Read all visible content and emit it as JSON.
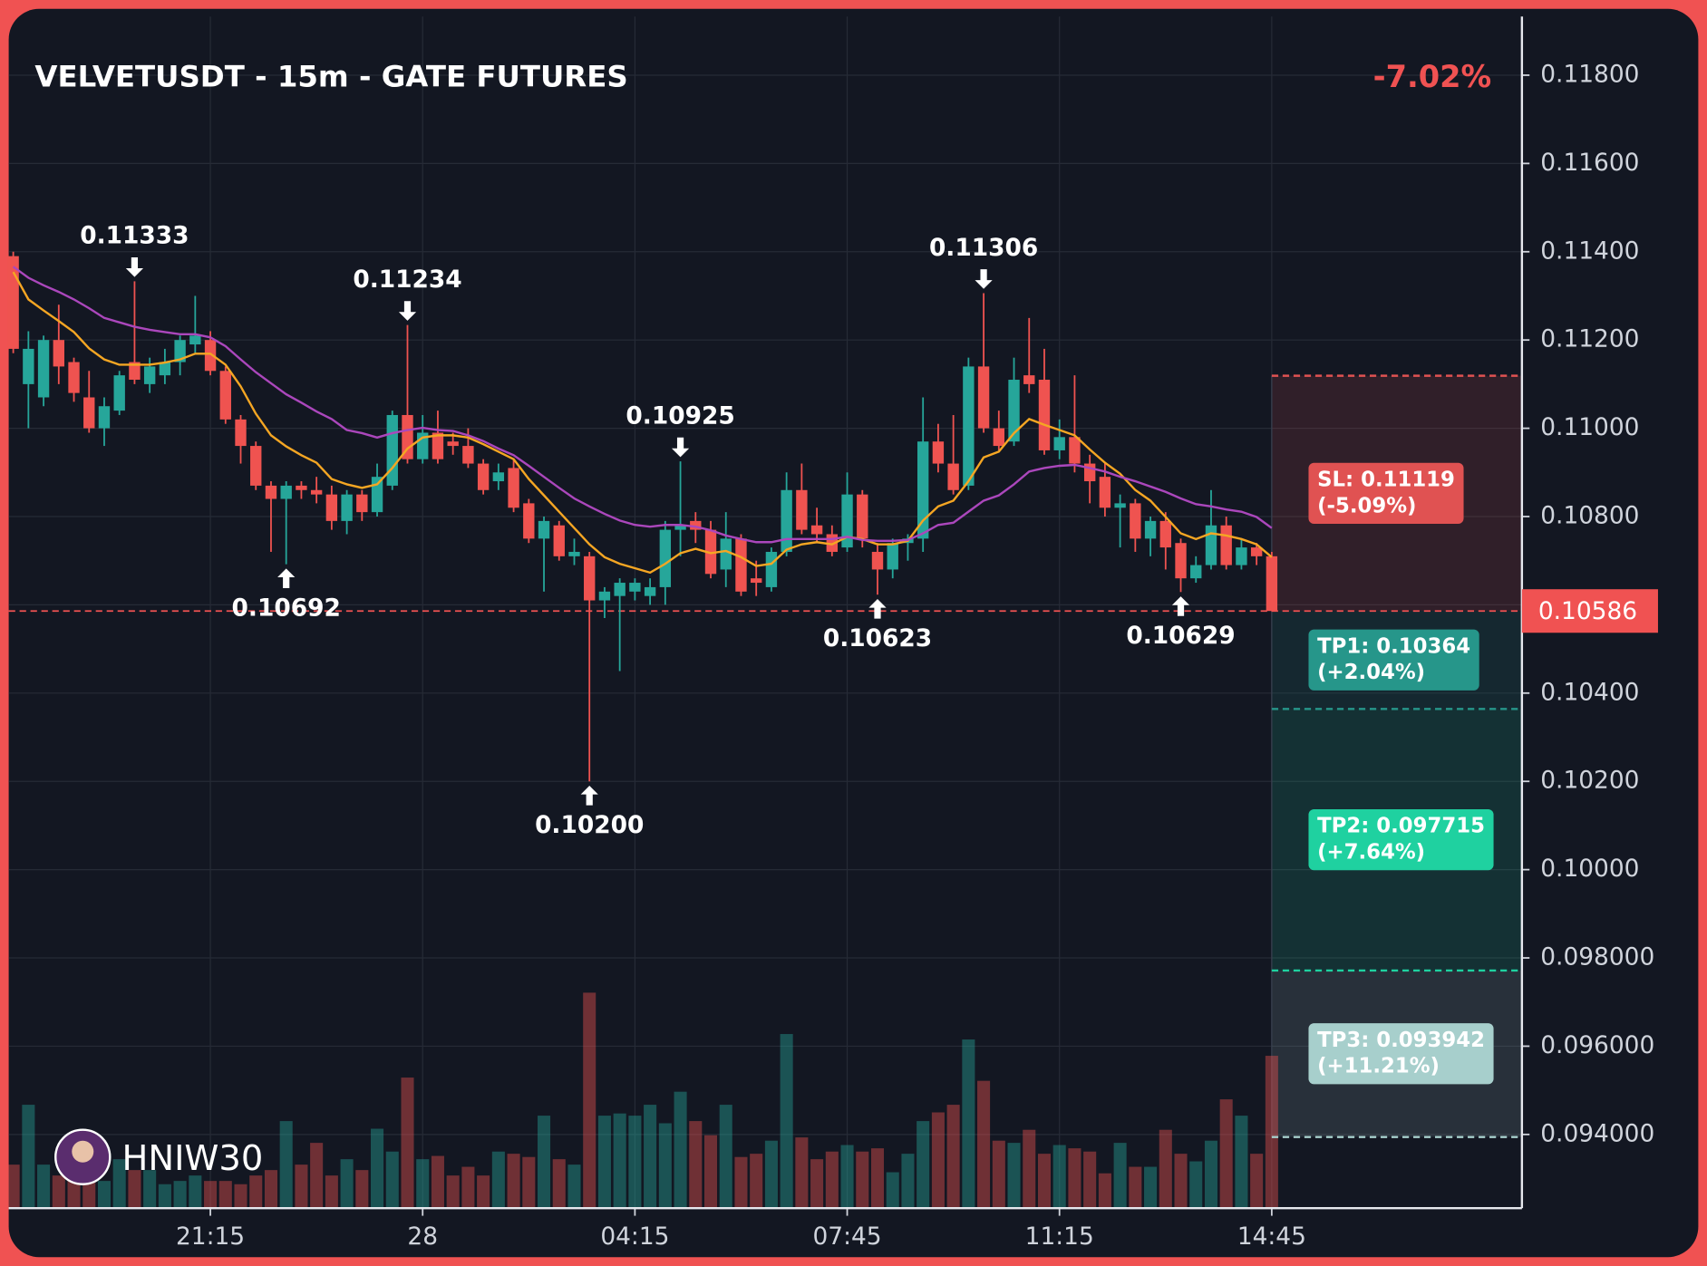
{
  "chart_data": {
    "type": "candlestick",
    "title": "VELVETUSDT - 15m - GATE FUTURES",
    "change": "-7.02%",
    "watermark": "HNIW30",
    "xlim": [
      -0.3,
      99.5
    ],
    "xticks": [
      {
        "value": 13,
        "label": "21:15"
      },
      {
        "value": 27,
        "label": "28"
      },
      {
        "value": 41,
        "label": "04:15"
      },
      {
        "value": 55,
        "label": "07:45"
      },
      {
        "value": 69,
        "label": "11:15"
      },
      {
        "value": 83,
        "label": "14:45"
      }
    ],
    "ylim": [
      0.09233,
      0.11933
    ],
    "yticks": [
      {
        "value": 0.118,
        "label": "0.11800"
      },
      {
        "value": 0.116,
        "label": "0.11600"
      },
      {
        "value": 0.114,
        "label": "0.11400"
      },
      {
        "value": 0.112,
        "label": "0.11200"
      },
      {
        "value": 0.11,
        "label": "0.11000"
      },
      {
        "value": 0.108,
        "label": "0.10800"
      },
      {
        "value": 0.106,
        "label": "0.10600"
      },
      {
        "value": 0.104,
        "label": "0.10400"
      },
      {
        "value": 0.102,
        "label": "0.10200"
      },
      {
        "value": 0.1,
        "label": "0.10000"
      },
      {
        "value": 0.098,
        "label": "0.098000"
      },
      {
        "value": 0.096,
        "label": "0.096000"
      },
      {
        "value": 0.094,
        "label": "0.094000"
      }
    ],
    "grid": true,
    "up_color": "#26a69a",
    "down_color": "#ef5350",
    "open": [
      0.1139,
      0.111,
      0.1107,
      0.112,
      0.1115,
      0.1107,
      0.11,
      0.1104,
      0.1115,
      0.111,
      0.1112,
      0.1115,
      0.1119,
      0.112,
      0.1113,
      0.1102,
      0.1096,
      0.1087,
      0.1084,
      0.1087,
      0.1086,
      0.1085,
      0.1079,
      0.1085,
      0.1081,
      0.1087,
      0.1103,
      0.1093,
      0.1099,
      0.1097,
      0.1096,
      0.1092,
      0.1088,
      0.1091,
      0.1083,
      0.1075,
      0.1078,
      0.1071,
      0.1071,
      0.1061,
      0.1062,
      0.1063,
      0.1062,
      0.1064,
      0.1077,
      0.1079,
      0.1077,
      0.1068,
      0.1075,
      0.1066,
      0.1064,
      0.1072,
      0.1086,
      0.1078,
      0.1076,
      0.1073,
      0.1085,
      0.1072,
      0.1068,
      0.1074,
      0.1075,
      0.1097,
      0.1092,
      0.1087,
      0.1114,
      0.11,
      0.1097,
      0.1112,
      0.1111,
      0.1095,
      0.1098,
      0.1092,
      0.1089,
      0.1082,
      0.1083,
      0.1075,
      0.1079,
      0.1074,
      0.1066,
      0.1069,
      0.1078,
      0.1069,
      0.1073,
      0.1071
    ],
    "high": [
      0.114,
      0.1122,
      0.1121,
      0.1128,
      0.1116,
      0.1113,
      0.1107,
      0.1113,
      0.11333,
      0.1116,
      0.1118,
      0.1121,
      0.113,
      0.1122,
      0.1114,
      0.1103,
      0.1097,
      0.1088,
      0.1088,
      0.1088,
      0.1089,
      0.1087,
      0.1086,
      0.1086,
      0.1092,
      0.1104,
      0.11234,
      0.1103,
      0.1104,
      0.1099,
      0.11,
      0.1093,
      0.1092,
      0.1093,
      0.1084,
      0.108,
      0.1079,
      0.1075,
      0.1072,
      0.1064,
      0.1066,
      0.1066,
      0.1066,
      0.1079,
      0.10925,
      0.1081,
      0.1079,
      0.1081,
      0.1076,
      0.107,
      0.1073,
      0.109,
      0.1092,
      0.1082,
      0.1078,
      0.109,
      0.1086,
      0.1074,
      0.1075,
      0.1076,
      0.1107,
      0.1101,
      0.1103,
      0.1116,
      0.11306,
      0.1104,
      0.1116,
      0.1125,
      0.1118,
      0.1102,
      0.1112,
      0.1094,
      0.1092,
      0.1085,
      0.1084,
      0.108,
      0.1081,
      0.1075,
      0.1071,
      0.1086,
      0.108,
      0.1075,
      0.1074,
      0.1072
    ],
    "low": [
      0.1117,
      0.11,
      0.1105,
      0.111,
      0.1106,
      0.1099,
      0.1096,
      0.1103,
      0.111,
      0.1108,
      0.111,
      0.1112,
      0.1117,
      0.1112,
      0.1101,
      0.1092,
      0.1086,
      0.1072,
      0.10692,
      0.1084,
      0.1083,
      0.1077,
      0.1076,
      0.1079,
      0.108,
      0.1086,
      0.1092,
      0.1092,
      0.1092,
      0.1094,
      0.1091,
      0.1085,
      0.1086,
      0.1081,
      0.1074,
      0.1063,
      0.107,
      0.1069,
      0.102,
      0.1057,
      0.1045,
      0.1061,
      0.106,
      0.106,
      0.1071,
      0.1074,
      0.1066,
      0.1064,
      0.1062,
      0.1062,
      0.1063,
      0.1071,
      0.1076,
      0.1074,
      0.1071,
      0.1072,
      0.1073,
      0.10623,
      0.1066,
      0.107,
      0.1072,
      0.109,
      0.1085,
      0.1086,
      0.1099,
      0.1095,
      0.1096,
      0.1108,
      0.1094,
      0.1093,
      0.109,
      0.1083,
      0.108,
      0.1073,
      0.1072,
      0.1071,
      0.1068,
      0.10629,
      0.1065,
      0.1068,
      0.1068,
      0.1068,
      0.1069,
      0.10586
    ],
    "close": [
      0.1118,
      0.1118,
      0.112,
      0.1114,
      0.1108,
      0.11,
      0.1105,
      0.1112,
      0.1111,
      0.1114,
      0.1115,
      0.112,
      0.1121,
      0.1113,
      0.1102,
      0.1096,
      0.1087,
      0.1084,
      0.1087,
      0.1086,
      0.1085,
      0.1079,
      0.1085,
      0.1081,
      0.1089,
      0.1103,
      0.1093,
      0.1099,
      0.1093,
      0.1096,
      0.1092,
      0.1086,
      0.109,
      0.1082,
      0.1075,
      0.1079,
      0.1071,
      0.1072,
      0.1061,
      0.1063,
      0.1065,
      0.1065,
      0.1064,
      0.1077,
      0.1078,
      0.1077,
      0.1067,
      0.1075,
      0.1063,
      0.1065,
      0.1072,
      0.1086,
      0.1077,
      0.1076,
      0.1072,
      0.1085,
      0.1075,
      0.1068,
      0.1074,
      0.1075,
      0.1097,
      0.1092,
      0.1086,
      0.1114,
      0.11,
      0.1096,
      0.1111,
      0.111,
      0.1095,
      0.1098,
      0.1092,
      0.1088,
      0.1082,
      0.1083,
      0.1075,
      0.1079,
      0.1073,
      0.1066,
      0.1069,
      0.1078,
      0.1069,
      0.1073,
      0.1071,
      0.10586
    ],
    "volume": [
      40,
      95,
      40,
      30,
      40,
      30,
      25,
      45,
      35,
      35,
      22,
      25,
      30,
      25,
      25,
      22,
      30,
      35,
      80,
      40,
      60,
      30,
      45,
      35,
      73,
      52,
      120,
      45,
      48,
      30,
      38,
      30,
      52,
      50,
      47,
      85,
      45,
      40,
      198,
      85,
      87,
      85,
      95,
      78,
      107,
      80,
      67,
      95,
      47,
      50,
      62,
      160,
      65,
      45,
      52,
      58,
      52,
      55,
      33,
      50,
      80,
      88,
      95,
      155,
      117,
      62,
      60,
      72,
      50,
      58,
      55,
      52,
      32,
      60,
      38,
      38,
      72,
      50,
      43,
      62,
      100,
      85,
      50,
      140
    ],
    "series": [
      {
        "color": "#f5a623",
        "values": [
          0.11354,
          0.11292,
          0.11267,
          0.11243,
          0.11218,
          0.11181,
          0.11156,
          0.11144,
          0.11144,
          0.11144,
          0.11149,
          0.11156,
          0.11169,
          0.11169,
          0.11144,
          0.11095,
          0.11033,
          0.10984,
          0.10959,
          0.10939,
          0.10922,
          0.10885,
          0.10873,
          0.10865,
          0.10873,
          0.1091,
          0.10954,
          0.10979,
          0.10984,
          0.10984,
          0.10979,
          0.10964,
          0.10947,
          0.1093,
          0.10885,
          0.10848,
          0.10811,
          0.10774,
          0.10737,
          0.10708,
          0.10693,
          0.10683,
          0.10673,
          0.10693,
          0.10717,
          0.10727,
          0.10717,
          0.10722,
          0.10708,
          0.10688,
          0.10693,
          0.10725,
          0.10737,
          0.10742,
          0.10737,
          0.10754,
          0.10749,
          0.10737,
          0.10737,
          0.10745,
          0.10791,
          0.10823,
          0.10836,
          0.1088,
          0.10934,
          0.10947,
          0.10989,
          0.11021,
          0.11008,
          0.10996,
          0.10984,
          0.10952,
          0.10922,
          0.10897,
          0.1086,
          0.10836,
          0.10799,
          0.10762,
          0.10749,
          0.10762,
          0.10757,
          0.10749,
          0.10737,
          0.10708
        ]
      },
      {
        "color": "#ab47bc",
        "values": [
          0.11366,
          0.11341,
          0.11324,
          0.11309,
          0.11292,
          0.11272,
          0.1125,
          0.1124,
          0.1123,
          0.11223,
          0.11218,
          0.11213,
          0.11213,
          0.11206,
          0.11186,
          0.11156,
          0.11127,
          0.11102,
          0.11077,
          0.11058,
          0.11038,
          0.11021,
          0.10996,
          0.10989,
          0.10979,
          0.10989,
          0.10996,
          0.11001,
          0.10996,
          0.10994,
          0.10984,
          0.10971,
          0.10954,
          0.10939,
          0.10915,
          0.1089,
          0.10865,
          0.10841,
          0.10823,
          0.10806,
          0.10791,
          0.10781,
          0.10777,
          0.10781,
          0.10781,
          0.10777,
          0.10769,
          0.10757,
          0.10749,
          0.10742,
          0.10742,
          0.10749,
          0.10749,
          0.10749,
          0.10749,
          0.10754,
          0.10747,
          0.10745,
          0.10745,
          0.10747,
          0.10762,
          0.10781,
          0.10786,
          0.10811,
          0.10836,
          0.10848,
          0.10873,
          0.10902,
          0.1091,
          0.10915,
          0.10917,
          0.1091,
          0.10902,
          0.1089,
          0.1088,
          0.10868,
          0.10856,
          0.10841,
          0.10828,
          0.10823,
          0.10816,
          0.10811,
          0.10799,
          0.10774
        ]
      }
    ],
    "annotations": [
      {
        "x": 8,
        "y": 0.11333,
        "text": "0.11333",
        "kind": "high"
      },
      {
        "x": 26,
        "y": 0.11234,
        "text": "0.11234",
        "kind": "high"
      },
      {
        "x": 44,
        "y": 0.10925,
        "text": "0.10925",
        "kind": "high"
      },
      {
        "x": 64,
        "y": 0.11306,
        "text": "0.11306",
        "kind": "high"
      },
      {
        "x": 18,
        "y": 0.10692,
        "text": "0.10692",
        "kind": "low"
      },
      {
        "x": 38,
        "y": 0.102,
        "text": "0.10200",
        "kind": "low"
      },
      {
        "x": 57,
        "y": 0.10623,
        "text": "0.10623",
        "kind": "low"
      },
      {
        "x": 77,
        "y": 0.10629,
        "text": "0.10629",
        "kind": "low"
      }
    ],
    "last_price": 0.10586,
    "last_price_color": "#f05252",
    "levels": [
      {
        "label": "SL: 0.11119",
        "sub": "(-5.09%)",
        "value": 0.11119,
        "color": "#e05252"
      },
      {
        "label": "TP1: 0.10364",
        "sub": "(+2.04%)",
        "value": 0.10364,
        "color": "#26968a"
      },
      {
        "label": "TP2: 0.097715",
        "sub": "(+7.64%)",
        "value": 0.097715,
        "color": "#1fd1a0"
      },
      {
        "label": "TP3: 0.093942",
        "sub": "(+11.21%)",
        "value": 0.093942,
        "color": "#a7cfcc"
      }
    ]
  }
}
